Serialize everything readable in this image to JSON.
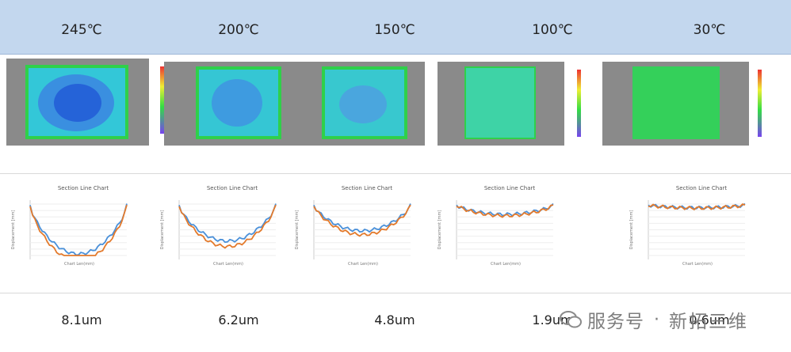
{
  "columns": [
    {
      "temp": "245℃",
      "value": "8.1um",
      "chart_title": "Section Line Chart",
      "deep": 0.95
    },
    {
      "temp": "200℃",
      "value": "6.2um",
      "chart_title": "Section Line Chart",
      "deep": 0.7
    },
    {
      "temp": "150℃",
      "value": "4.8um",
      "chart_title": "Section Line Chart",
      "deep": 0.5
    },
    {
      "temp": "100℃",
      "value": "1.9um",
      "chart_title": "Section Line Chart",
      "deep": 0.18
    },
    {
      "temp": "30℃",
      "value": "0.6um",
      "chart_title": "Section Line Chart",
      "deep": 0.05
    }
  ],
  "chart_axis": {
    "ylabel": "Displacement [mm]",
    "xlabel": "Chart Len(mm)"
  },
  "colors": {
    "header_bg": "#c3d7ee",
    "series_a": "#4a90d9",
    "series_b": "#e37a2c"
  },
  "watermark": {
    "text": "服务号",
    "dot": "·",
    "brand": "新拓三维"
  }
}
